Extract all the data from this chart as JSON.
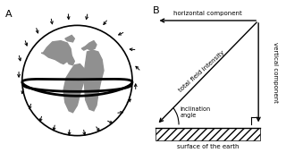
{
  "bg_color": "#ffffff",
  "panel_a_label": "A",
  "panel_b_label": "B",
  "labels": {
    "horizontal_component": "horizontal component",
    "vertical_component": "vertical component",
    "total_field_intensity": "total field intensity",
    "inclination_angle": "inclination\nangle",
    "surface_of_earth": "surface of the earth"
  },
  "font_size": 5.0,
  "globe_color": "#d8d8d8",
  "continent_color": "#909090",
  "arrow_color": "#000000"
}
